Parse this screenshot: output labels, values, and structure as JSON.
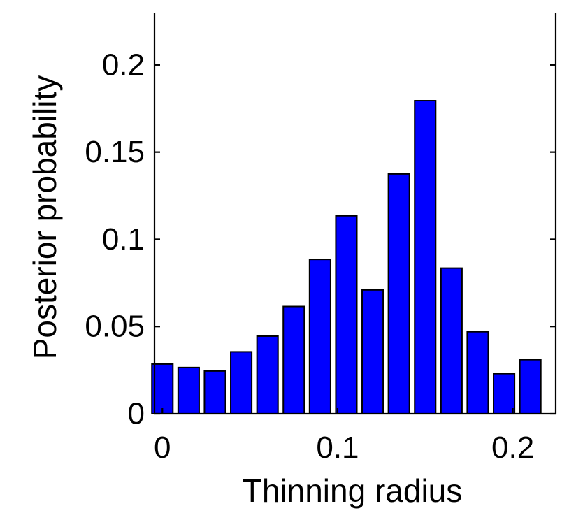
{
  "chart_data": {
    "type": "bar",
    "x": [
      0.0,
      0.015,
      0.03,
      0.045,
      0.06,
      0.075,
      0.09,
      0.105,
      0.12,
      0.135,
      0.15,
      0.165,
      0.18,
      0.195,
      0.21
    ],
    "values": [
      0.0285,
      0.0265,
      0.0245,
      0.0355,
      0.0445,
      0.0615,
      0.0885,
      0.1135,
      0.071,
      0.1375,
      0.1795,
      0.0835,
      0.047,
      0.023,
      0.031
    ],
    "xlabel": "Thinning radius",
    "ylabel": "Posterior probability",
    "xlim": [
      -0.0045,
      0.2245
    ],
    "ylim": [
      0,
      0.23
    ],
    "xticks": [
      0,
      0.1,
      0.2
    ],
    "xtick_labels": [
      "0",
      "0.1",
      "0.2"
    ],
    "yticks": [
      0,
      0.05,
      0.1,
      0.15,
      0.2
    ],
    "ytick_labels": [
      "0",
      "0.05",
      "0.1",
      "0.15",
      "0.2"
    ],
    "grid": false,
    "bar_color": "#0000ff",
    "edge_color": "#000000"
  }
}
